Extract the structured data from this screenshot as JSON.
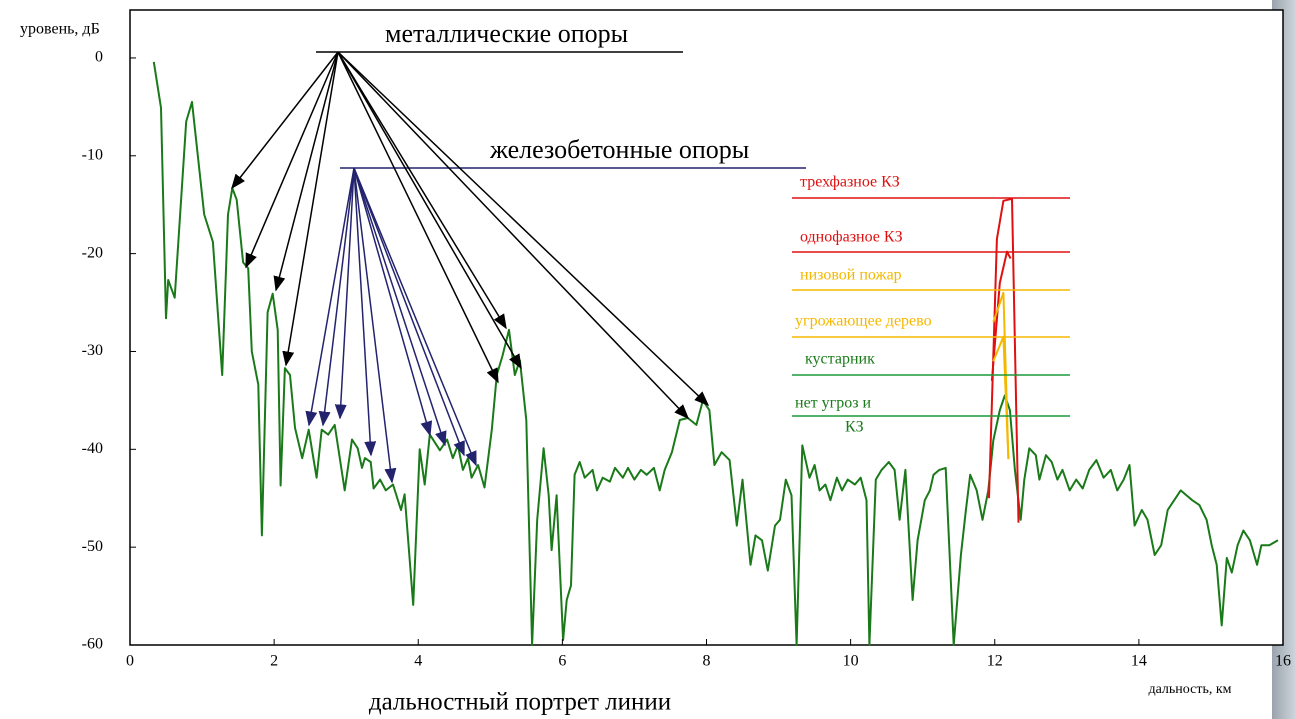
{
  "chart_data": {
    "type": "line",
    "title": "дальностный портрет линии",
    "y_label": "уровень, дБ",
    "x_label": "дальность, км",
    "xlim": [
      0,
      16
    ],
    "ylim": [
      -60,
      4.9
    ],
    "xticks": [
      0,
      2,
      4,
      6,
      8,
      10,
      12,
      14,
      16
    ],
    "yticks": [
      0,
      -10,
      -20,
      -30,
      -40,
      -50,
      -60
    ],
    "annotations": {
      "metal": "металлические опоры",
      "concrete": "железобетонные опоры",
      "three_phase": "трехфазное КЗ",
      "single_phase": "однофазное КЗ",
      "ground_fire": "низовой пожар",
      "threat_tree": "угрожающее дерево",
      "shrub": "кустарник",
      "no_threat": [
        "нет угроз и",
        "КЗ"
      ]
    },
    "series": [
      {
        "color": "#1a7a1a",
        "x": [
          0.33,
          0.43,
          0.5,
          0.53,
          0.62,
          0.78,
          0.86,
          1.03,
          1.15,
          1.28,
          1.36,
          1.42,
          1.48,
          1.57,
          1.64,
          1.69,
          1.78,
          1.83,
          1.91,
          1.98,
          2.05,
          2.09,
          2.15,
          2.22,
          2.29,
          2.39,
          2.48,
          2.59,
          2.66,
          2.75,
          2.84,
          2.98,
          3.08,
          3.16,
          3.22,
          3.26,
          3.34,
          3.38,
          3.47,
          3.55,
          3.65,
          3.76,
          3.81,
          3.93,
          4.02,
          4.09,
          4.16,
          4.3,
          4.4,
          4.48,
          4.55,
          4.62,
          4.69,
          4.74,
          4.83,
          4.92,
          5.02,
          5.09,
          5.17,
          5.26,
          5.34,
          5.41,
          5.5,
          5.58,
          5.65,
          5.74,
          5.81,
          5.85,
          5.92,
          6.01,
          6.06,
          6.12,
          6.17,
          6.24,
          6.31,
          6.42,
          6.48,
          6.56,
          6.66,
          6.73,
          6.84,
          6.91,
          7.0,
          7.09,
          7.17,
          7.27,
          7.35,
          7.42,
          7.52,
          7.63,
          7.74,
          7.86,
          7.95,
          8.04,
          8.11,
          8.21,
          8.32,
          8.42,
          8.5,
          8.61,
          8.68,
          8.77,
          8.85,
          8.95,
          9.02,
          9.1,
          9.18,
          9.25,
          9.33,
          9.43,
          9.5,
          9.57,
          9.65,
          9.72,
          9.81,
          9.88,
          9.96,
          10.06,
          10.14,
          10.22,
          10.26,
          10.35,
          10.43,
          10.53,
          10.61,
          10.68,
          10.76,
          10.86,
          10.93,
          11.03,
          11.1,
          11.15,
          11.23,
          11.32,
          11.43,
          11.53,
          11.6,
          11.66,
          11.75,
          11.83,
          11.91,
          11.98,
          12.07,
          12.14,
          12.21,
          12.28,
          12.36,
          12.41,
          12.48,
          12.57,
          12.62,
          12.71,
          12.79,
          12.87,
          12.94,
          13.04,
          13.13,
          13.22,
          13.31,
          13.41,
          13.51,
          13.61,
          13.7,
          13.79,
          13.87,
          13.94,
          14.04,
          14.12,
          14.22,
          14.31,
          14.4,
          14.49,
          14.58,
          14.66,
          14.74,
          14.84,
          14.94,
          15.01,
          15.08,
          15.15,
          15.22,
          15.29,
          15.37,
          15.45,
          15.54,
          15.64,
          15.7,
          15.81,
          15.93
        ],
        "values": [
          -0.4,
          -5.1,
          -26.6,
          -22.7,
          -24.5,
          -6.5,
          -4.5,
          -16,
          -18.8,
          -32.4,
          -16,
          -13.3,
          -14.5,
          -20.9,
          -21.5,
          -30,
          -33.4,
          -48.8,
          -26,
          -24.1,
          -27.8,
          -43.7,
          -31.7,
          -32.4,
          -37.8,
          -40.9,
          -38,
          -42.9,
          -38,
          -38.5,
          -37.5,
          -44.2,
          -39,
          -39.9,
          -41.9,
          -40.9,
          -41.3,
          -44,
          -43.1,
          -44.2,
          -43.6,
          -46.2,
          -44.6,
          -55.9,
          -40,
          -43.6,
          -38.5,
          -40.1,
          -39,
          -40.9,
          -39.6,
          -42.1,
          -40.9,
          -42.9,
          -41.6,
          -43.9,
          -38,
          -32.4,
          -30.4,
          -27.8,
          -32.4,
          -30.9,
          -37,
          -60,
          -47.2,
          -39.9,
          -44.7,
          -50.3,
          -44.7,
          -59.5,
          -55.4,
          -53.9,
          -42.6,
          -41.3,
          -42.9,
          -42.1,
          -44.2,
          -42.9,
          -43.3,
          -41.9,
          -42.9,
          -41.9,
          -43.1,
          -42.1,
          -42.6,
          -41.9,
          -44.2,
          -42.1,
          -40.3,
          -37,
          -36.8,
          -37.5,
          -35,
          -36,
          -41.6,
          -40.3,
          -41.1,
          -47.8,
          -43.1,
          -51.8,
          -48.8,
          -49.3,
          -52.4,
          -47.8,
          -47.2,
          -43.1,
          -44.7,
          -60,
          -39.6,
          -42.9,
          -41.6,
          -44.2,
          -43.6,
          -45.2,
          -42.9,
          -44.2,
          -43.1,
          -43.6,
          -42.9,
          -45.2,
          -60,
          -43.1,
          -42.1,
          -41.3,
          -42.1,
          -47.2,
          -42.1,
          -55.4,
          -49.3,
          -45.2,
          -44.2,
          -42.6,
          -42.1,
          -41.9,
          -60,
          -50.8,
          -46.2,
          -42.6,
          -44.2,
          -47.2,
          -44.2,
          -39.1,
          -36,
          -34.5,
          -36,
          -42.1,
          -47.2,
          -43.1,
          -39.9,
          -40.6,
          -43.1,
          -40.6,
          -41.3,
          -43.1,
          -42.1,
          -44.2,
          -43.1,
          -44,
          -42.1,
          -41.1,
          -42.9,
          -42.1,
          -44.2,
          -43.1,
          -41.6,
          -47.8,
          -46.2,
          -47.2,
          -50.8,
          -49.8,
          -46.2,
          -45.2,
          -44.2,
          -44.7,
          -45.2,
          -45.7,
          -47.2,
          -49.8,
          -51.8,
          -58,
          -51.1,
          -52.6,
          -49.8,
          -48.3,
          -49.3,
          -51.8,
          -49.8,
          -49.8,
          -49.3
        ]
      },
      {
        "color": "#e01010",
        "x": [
          11.92,
          12.03,
          12.12,
          12.24,
          12.33
        ],
        "values": [
          -45,
          -18.5,
          -14.6,
          -14.4,
          -47.5
        ]
      },
      {
        "color": "#e01010",
        "x": [
          11.96,
          12.07,
          12.17,
          12.22
        ],
        "values": [
          -33,
          -23,
          -19.8,
          -20.5
        ]
      },
      {
        "color": "#f5b800",
        "x": [
          11.98,
          12.12,
          12.19
        ],
        "values": [
          -27,
          -24,
          -41
        ]
      },
      {
        "color": "#f5b800",
        "x": [
          11.98,
          12.12,
          12.19
        ],
        "values": [
          -31,
          -28.5,
          -41
        ]
      }
    ]
  }
}
